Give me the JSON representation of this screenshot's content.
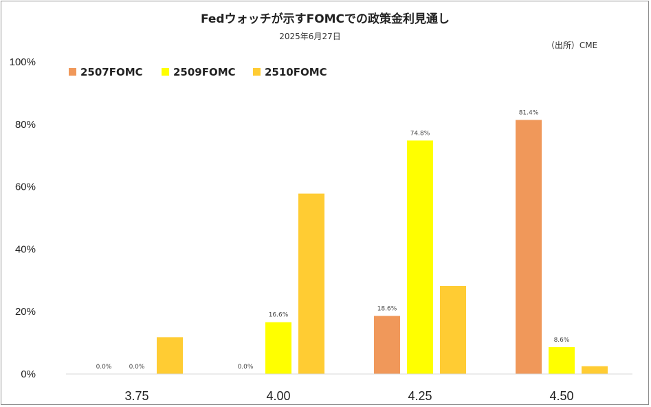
{
  "chart_data": {
    "type": "bar",
    "title": "Fedウォッチが示すFOMCでの政策金利見通し",
    "subtitle": "2025年6月27日",
    "source": "（出所）CME",
    "categories": [
      "3.75",
      "4.00",
      "4.25",
      "4.50"
    ],
    "ylim": [
      0,
      100
    ],
    "yticks": [
      "0%",
      "20%",
      "40%",
      "60%",
      "80%",
      "100%"
    ],
    "ytick_values": [
      0,
      20,
      40,
      60,
      80,
      100
    ],
    "legend_position": "top-left",
    "grid": false,
    "series": [
      {
        "name": "2507FOMC",
        "color": "#F0985A",
        "values": [
          0.0,
          0.0,
          18.6,
          81.4
        ],
        "labels": [
          "0.0%",
          "0.0%",
          "18.6%",
          "81.4%"
        ]
      },
      {
        "name": "2509FOMC",
        "color": "#FFFF00",
        "values": [
          0.0,
          16.6,
          74.8,
          8.6
        ],
        "labels": [
          "0.0%",
          "16.6%",
          "74.8%",
          "8.6%"
        ]
      },
      {
        "name": "2510FOMC",
        "color": "#FFCC33",
        "values": [
          11.8,
          57.8,
          28.2,
          2.5
        ],
        "labels": [
          "",
          "",
          "",
          ""
        ]
      }
    ]
  }
}
